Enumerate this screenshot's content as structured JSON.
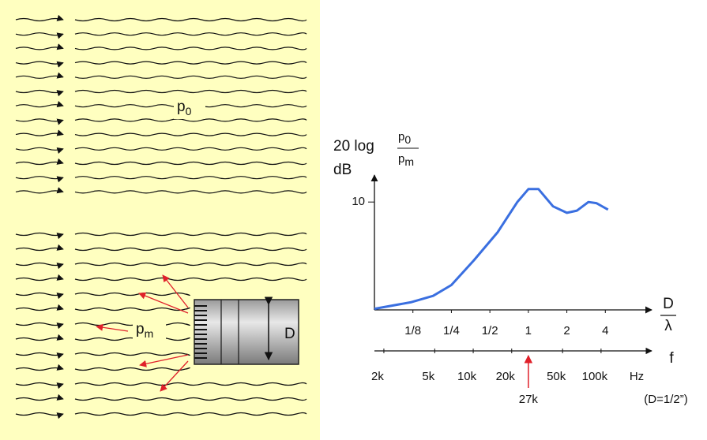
{
  "diagram": {
    "free_field_label": {
      "base": "p",
      "sub": "0"
    },
    "mic_label": {
      "base": "p",
      "sub": "m"
    },
    "diameter_label": "D"
  },
  "chart_data": {
    "type": "line",
    "ylabel": {
      "prefix": "20 log",
      "numerator": {
        "base": "p",
        "sub": "0"
      },
      "denominator": {
        "base": "p",
        "sub": "m"
      },
      "unit": "dB"
    },
    "xlabel": {
      "numerator": "D",
      "denominator": "λ"
    },
    "xscale": "log",
    "xlim": [
      0.0625,
      8
    ],
    "xticks": [
      {
        "value": 0.125,
        "label": "1/8"
      },
      {
        "value": 0.25,
        "label": "1/4"
      },
      {
        "value": 0.5,
        "label": "1/2"
      },
      1,
      2,
      4
    ],
    "ylim": [
      0,
      12.5
    ],
    "yticks": [
      10
    ],
    "color": "#3a6fe0",
    "x": [
      0.0625,
      0.12,
      0.18,
      0.25,
      0.375,
      0.575,
      0.82,
      1,
      1.2,
      1.56,
      2,
      2.4,
      2.95,
      3.4,
      4.2
    ],
    "values": [
      0.1,
      0.7,
      1.3,
      2.3,
      4.6,
      7.2,
      10,
      11.2,
      11.2,
      9.6,
      9.0,
      9.2,
      10,
      9.9,
      9.3
    ],
    "frequency_axis": {
      "label": "f",
      "unit": "Hz",
      "lim": [
        1687.5,
        216000
      ],
      "ticks": [
        {
          "value": 2000,
          "label": "2k"
        },
        {
          "value": 5000,
          "label": "5k"
        },
        {
          "value": 10000,
          "label": "10k"
        },
        {
          "value": 20000,
          "label": "20k"
        },
        {
          "value": 50000,
          "label": "50k"
        },
        {
          "value": 100000,
          "label": "100k"
        }
      ],
      "marker": {
        "value": 27000,
        "label": "27k"
      },
      "note": "(D=1/2”)"
    }
  }
}
